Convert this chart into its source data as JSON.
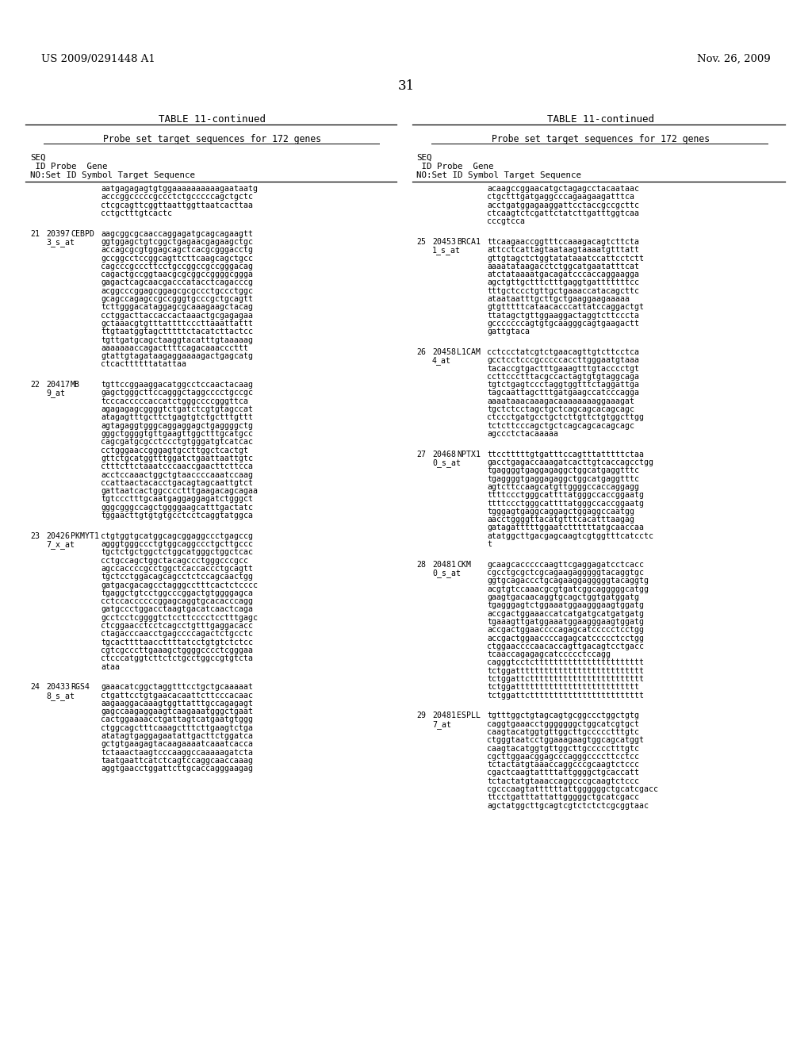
{
  "patent_number": "US 2009/0291448 A1",
  "date": "Nov. 26, 2009",
  "page_number": "31",
  "table_title": "TABLE 11-continued",
  "table_subtitle": "Probe set target sequences for 172 genes",
  "background_color": "#ffffff",
  "text_color": "#000000",
  "left_col": [
    {
      "seq": "",
      "probe": "",
      "gene": "",
      "lines": [
        "aatgagagagtgtggaaaaaaaaaagaataatg",
        "acccggcccccgccctctgcccccagctgctc",
        "ctcgcagttcggttaattggttaatcacttaa",
        "cctgctttgtcactc"
      ]
    },
    {
      "seq": "21 20397",
      "probe": "3_s_at",
      "gene": "CEBPD",
      "lines": [
        "aagcggcgcaaccaggagatgcagcagaagtt",
        "ggtggagctgtcggctgagaacgagaagctgc",
        "accagcgcgtggagcagctcacgcgggacctg",
        "gccggcctccggcagttcttcaagcagctgcc",
        "cagcccgcccttcctgccggccgccgggacag",
        "cagactgccggtaacgcgcggccggggcggga",
        "gagactcagcaacgacccatacctcagacccg",
        "acggcccggagcggagcgcgccctgccctggc",
        "gcagccagagccgccgggtgcccgctgcagtt",
        "tcttgggacataggagcgcaaagaagctacag",
        "cctggacttaccaccactaaactgcgagagaa",
        "gctaaacgtgtttattttcccttaaattattt",
        "ttgtaatggtagctttttctacatcttactcc",
        "tgttgatgcagctaaggtacatttgtaaaaag",
        "aaaaaaaccagacttttcagacaaacccttt",
        "gtattgtagataagaggaaaagactgagcatg",
        "ctcacttttttatattaa"
      ]
    },
    {
      "seq": "22 20417",
      "probe": "9_at",
      "gene": "MB",
      "lines": [
        "tgttccggaaggacatggcctccaactacaag",
        "gagctgggcttccagggctaggcccctgccgc",
        "tcccacccccaccatctgggccccgggttca",
        "agagagagcggggtctgatctcgtgtagccat",
        "atagagtttgcttctgagtgtctgctttgttt",
        "agtagaggtgggcaggaggagctgaggggctg",
        "gggctggggtgttgaagttggctttgcatgcc",
        "cagcgatgcgcctccctgtgggatgtcatcac",
        "cctgggaaccgggagtgccttggctcactgt",
        "gttctgcatggtttggatctgaattaattgtc",
        "ctttcttctaaatcccaaccgaacttcttcca",
        "acctccaaactggctgtaaccccaaatccaag",
        "ccattaactacacctgacagtagcaattgtct",
        "gattaatcactggcccctttgaagacagcagaa",
        "tgtccctttgcaatgaggaggagatctgggct",
        "gggcgggccagctggggaagcatttgactatc",
        "tggaacttgtgtgtgcctcctcaggtatggca"
      ]
    },
    {
      "seq": "23 20426",
      "probe": "7_x_at",
      "gene": "PKMYT1",
      "lines": [
        "ctgtggtgcatggcagcggaggccctgagccg",
        "agggtgggccctgtggcaggccctgcttgccc",
        "tgctctgctggctctggcatgggctggctcac",
        "cctgccagctggctacagccctgggcccgcc",
        "agccaccccgcctggctcaccaccctgcagtt",
        "tgctcctggacagcagcctctccagcaactgg",
        "gatgacgacagcctagggcctttcactctcccc",
        "tgaggctgtcctggcccggactgtggggagca",
        "cctccaccccccggagcaggtgcacacccagg",
        "gatgccctggacctaagtgacatcaactcaga",
        "gcctcctcggggtctccttcccctcctttgagc",
        "ctcggaacctcctcagcctgtttgaggacacc",
        "ctagacccaacctgagccccagactctgcctc",
        "tgcacttttaaccttttatcctgtgtctctcc",
        "cgtcgcccttgaaagctggggcccctcgggaa",
        "ctcccatggtcttctctgcctggccgtgtcta",
        "ataa"
      ]
    },
    {
      "seq": "24 20433",
      "probe": "8_s_at",
      "gene": "RGS4",
      "lines": [
        "gaaacatcggctaggtttcctgctgcaaaaat",
        "ctgattcctgtgaacacaattcttcccacaac",
        "aagaaggacaaagtggttatttgccagagagt",
        "gagccaagaggaagtcaagaaatgggctgaat",
        "cactggaaaacctgattagtcatgaatgtggg",
        "ctggcagctttcaaagctttcttgaagtctga",
        "atatagtgaggagaatattgacttctggatca",
        "gctgtgaagagtacaagaaaatcaaatcacca",
        "tctaaactaagtcccaaggccaaaaagatcta",
        "taatgaattcatctcagtccaggcaaccaaag",
        "aggtgaacctggattcttgcaccagggaagag"
      ]
    }
  ],
  "right_col": [
    {
      "seq": "",
      "probe": "",
      "gene": "",
      "lines": [
        "acaagccggaacatgctagagcctacaataac",
        "ctgctttgatgaggcccagaagaagatttca",
        "acctgatggagaaggattcctaccgccgcttc",
        "ctcaagtctcgattctatcttgatttggtcaa",
        "cccgtcca"
      ]
    },
    {
      "seq": "25 20453",
      "probe": "1_s_at",
      "gene": "BRCA1",
      "lines": [
        "ttcaagaaccggtttccaaagacagtcttcta",
        "attcctcattagtaataagtaaaatgtttatt",
        "gttgtagctctggtatataaatccattcctctt",
        "aaaatataagacctctggcatgaatatttcat",
        "atctataaaatgacagatcccaccaggaagga",
        "agctgttgctttctttgaggtgatttttttcc",
        "tttgctccctgttgctgaaaccatacagcttc",
        "ataataatttgcttgctgaaggaagaaaaa",
        "gtgtttttcataacacccattatccaggactgt",
        "ttatagctgttggaaggactaggtcttcccta",
        "gcccccccagtgtgcaagggcagtgaagactt",
        "gattgtaca"
      ]
    },
    {
      "seq": "26 20458",
      "probe": "4_at",
      "gene": "L1CAM",
      "lines": [
        "cctccctatcgtctgaacagttgtcttcctca",
        "gcctcctcccgcccccaccttgggaatgtaaa",
        "tacaccgtgactttgaaagtttgtacccctgt",
        "ccttccctttacgccactagtgtgtaggcaga",
        "tgtctgagtccctaggtggtttctaggattga",
        "tagcaattagctttgatgaagccatcccagga",
        "aaaataaacaaagacaaaaaaaaggaaagat",
        "tgctctcctagctgctcagcagcacagcagc",
        "ctccctgatgcctgctcttgttctgtggcttgg",
        "tctcttcccagctgctcagcagcacagcagc",
        "agccctctacaaaaa"
      ]
    },
    {
      "seq": "27 20468",
      "probe": "0_s_at",
      "gene": "NPTX1",
      "lines": [
        "ttcctttttgtgatttccagtttatttttctaa",
        "gacctgagaccaaagatcacttgtcaccagcctgg",
        "tgaggggtgaggagaggctggcatgaggtttc",
        "tgaggggtgaggagaggctggcatgaggtttc",
        "agtcttccaagcatgttggggccaccaggagg",
        "ttttccctgggcattttatgggccaccggaatg",
        "ttttccctgggcattttatgggccaccggaatg",
        "tgggagtgaggcaggagctggaggccaatgg",
        "aacctggggttacatgtttcacatttaagag",
        "gatagatttttggaatcttttttatgcaaccaa",
        "atatggcttgacgagcaagtcgtggtttcatcctc",
        "t"
      ]
    },
    {
      "seq": "28 20481",
      "probe": "0_s_at",
      "gene": "CKM",
      "lines": [
        "gcaagcacccccaagttcgaggagatcctcacc",
        "cgcctgcgctcgcagaagagggggtacaggtgc",
        "ggtgcagaccctgcagaaggagggggtacaggtg",
        "acgtgtccaaacgcgtgatcggcagggggcatgg",
        "gaagtgacaacaggtgcagctggtgatggatg",
        "tgagggagtctggaaatggaagggaagtggatg",
        "accgactggaaaccatcatgatgcatgatgatg",
        "tgaaagttgatggaaatggaagggaagtggatg",
        "accgactggaaccccagagcatccccctcctgg",
        "accgactggaaccccagagcatccccctcctgg",
        "ctggaaccccaacaccagttgacagtcctgacc",
        "tcaaccagagagcatccccctccagg",
        "cagggtcctcttttttttttttttttttttttt",
        "tctggattttttttttttttttttttttttttt",
        "tctggattctttttttttttttttttttttttt",
        "tctggatttttttttttttttttttttttttt",
        "tctggattctttttttttttttttttttttttt"
      ]
    },
    {
      "seq": "29 20481",
      "probe": "7_at",
      "gene": "ESPLL",
      "lines": [
        "tgtttggctgtagcagtgcggccctggctgtg",
        "caggtgaaacctgggggggctggcatcgtgct",
        "caagtacatggtgttggcttgccccctttgtc",
        "ctgggtaatcctggaaagaagtggcagcatggt",
        "caagtacatggtgttggcttgccccctttgtc",
        "cgcttggaacggagcccagggccccttcctcc",
        "tctactatgtaaaccaggcccgcaagtctccc",
        "cgactcaagtattttattggggctgcaccatt",
        "tctactatgtaaaccaggcccgcaagtctccc",
        "cgcccaagtattttttattggggggctgcatcgacc",
        "ttcctgatttattattgggggctgcatcgacc",
        "agctatggcttgcagtcgtctctctcgcggtaac"
      ]
    }
  ]
}
